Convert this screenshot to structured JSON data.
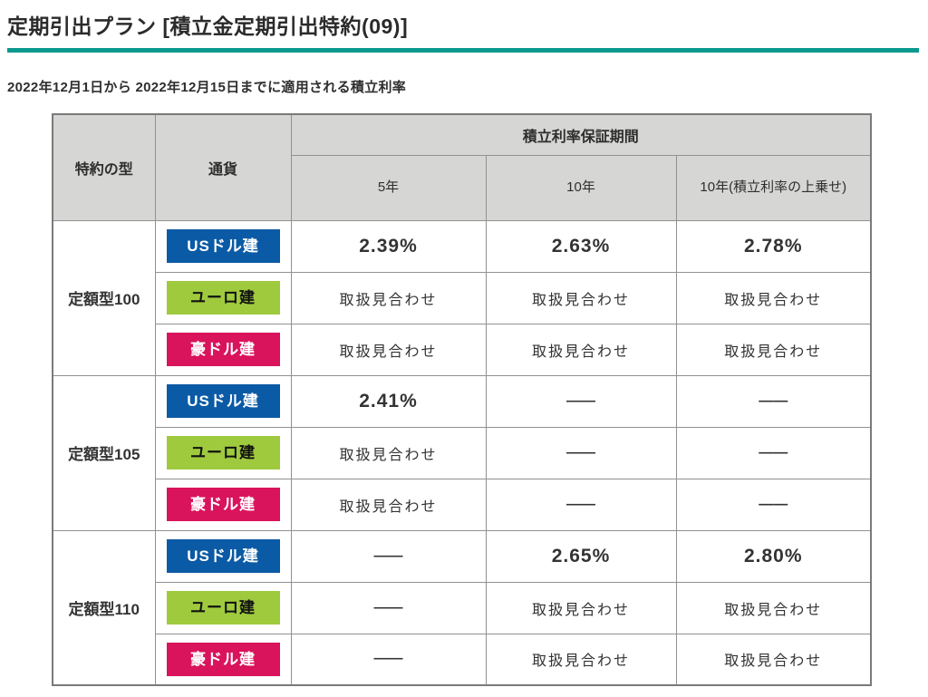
{
  "page": {
    "title": "定期引出プラン [積立金定期引出特約(09)]",
    "subtitle": "2022年12月1日から 2022年12月15日までに適用される積立利率"
  },
  "colors": {
    "accent_teal": "#0a9a8d",
    "header_bg": "#d6d6d4",
    "badge_usd_blue": "#0b5aa5",
    "badge_eur_green": "#9fca3e",
    "badge_aud_pink": "#d9135c"
  },
  "table": {
    "headers": {
      "col_type": "特約の型",
      "col_currency": "通貨",
      "guarantee_period": "積立利率保証期間",
      "periods": [
        "5年",
        "10年",
        "10年(積立利率の上乗せ)"
      ]
    },
    "suspended_label": "取扱見合わせ",
    "not_available_dash": "——",
    "groups": [
      {
        "type": "定額型100",
        "rows": [
          {
            "currency": "USドル建",
            "badge": "usd",
            "values": [
              "2.39%",
              "2.63%",
              "2.78%"
            ]
          },
          {
            "currency": "ユーロ建",
            "badge": "eur",
            "values": [
              "取扱見合わせ",
              "取扱見合わせ",
              "取扱見合わせ"
            ]
          },
          {
            "currency": "豪ドル建",
            "badge": "aud",
            "values": [
              "取扱見合わせ",
              "取扱見合わせ",
              "取扱見合わせ"
            ]
          }
        ]
      },
      {
        "type": "定額型105",
        "rows": [
          {
            "currency": "USドル建",
            "badge": "usd",
            "values": [
              "2.41%",
              "——",
              "——"
            ]
          },
          {
            "currency": "ユーロ建",
            "badge": "eur",
            "values": [
              "取扱見合わせ",
              "——",
              "——"
            ]
          },
          {
            "currency": "豪ドル建",
            "badge": "aud",
            "values": [
              "取扱見合わせ",
              "——",
              "——"
            ]
          }
        ]
      },
      {
        "type": "定額型110",
        "rows": [
          {
            "currency": "USドル建",
            "badge": "usd",
            "values": [
              "——",
              "2.65%",
              "2.80%"
            ]
          },
          {
            "currency": "ユーロ建",
            "badge": "eur",
            "values": [
              "——",
              "取扱見合わせ",
              "取扱見合わせ"
            ]
          },
          {
            "currency": "豪ドル建",
            "badge": "aud",
            "values": [
              "——",
              "取扱見合わせ",
              "取扱見合わせ"
            ]
          }
        ]
      }
    ]
  }
}
